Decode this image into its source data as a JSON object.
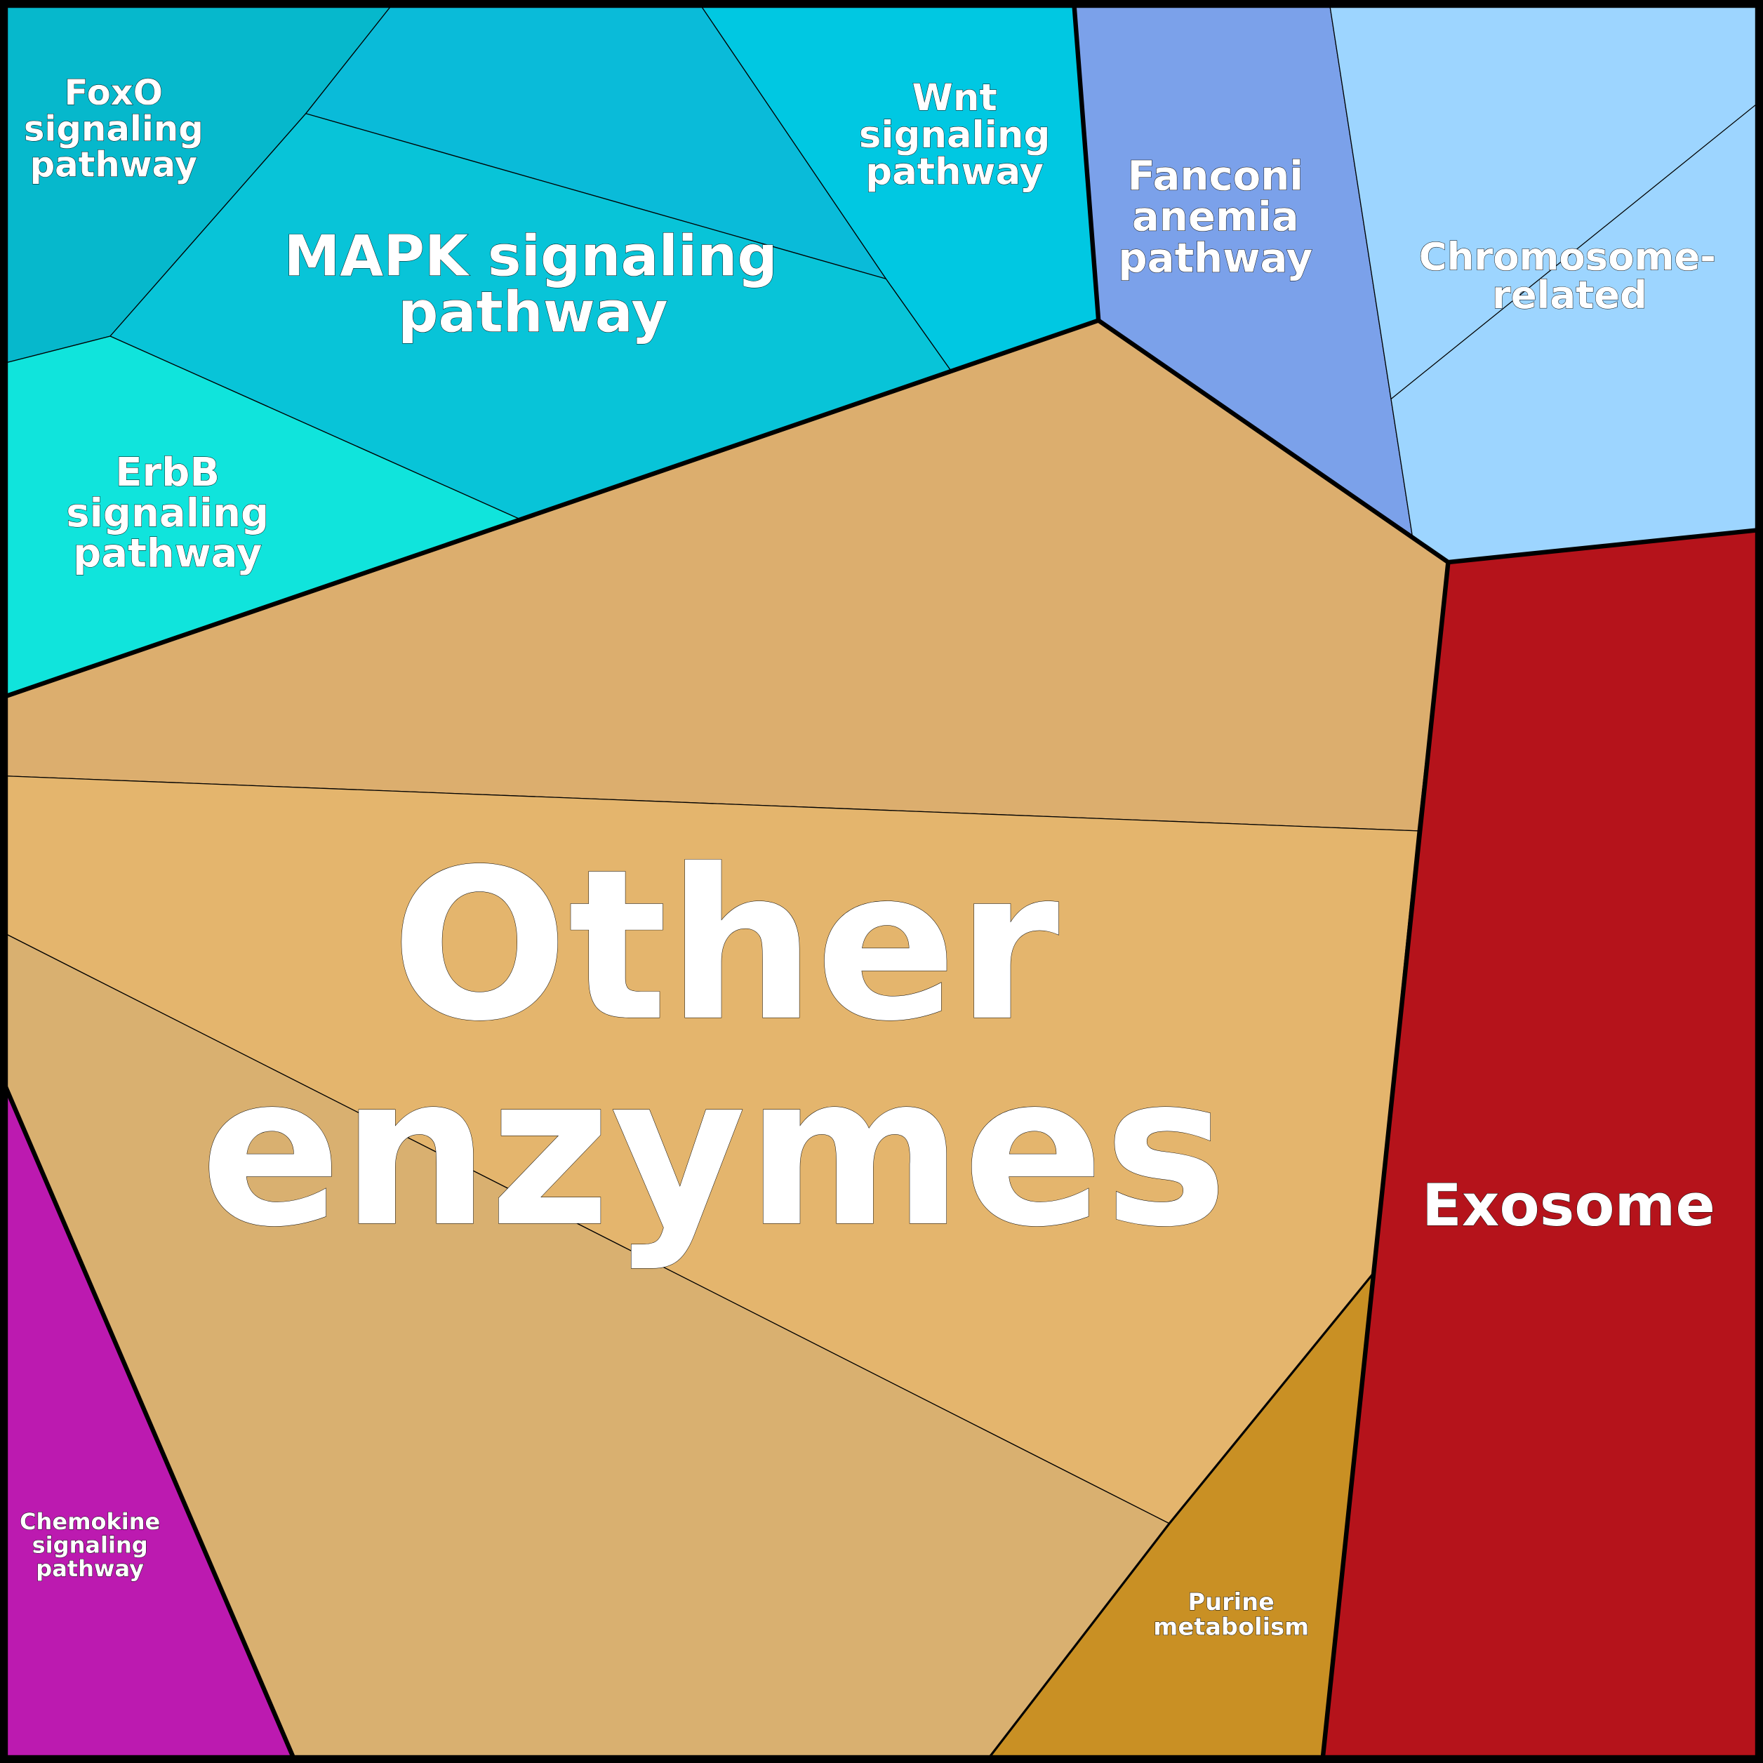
{
  "title": "",
  "cells": {
    "foxo": {
      "label_lines": [
        "FoxO",
        "signaling",
        "pathway"
      ],
      "color": "#06b8cc"
    },
    "mapk": {
      "label_lines": [
        "MAPK signaling",
        "pathway"
      ],
      "color": "#08c4d8",
      "sub_color": "#0abbd9"
    },
    "wnt": {
      "label_lines": [
        "Wnt",
        "signaling",
        "pathway"
      ],
      "color": "#00c8e2"
    },
    "erbb": {
      "label_lines": [
        "ErbB",
        "signaling",
        "pathway"
      ],
      "color": "#10e4dc"
    },
    "fanconi": {
      "label_lines": [
        "Fanconi",
        "anemia",
        "pathway"
      ],
      "color": "#7ba1ea"
    },
    "chromosome": {
      "label_lines": [
        "Chromosome-",
        "related"
      ],
      "color": "#9dd5ff"
    },
    "other": {
      "label_lines": [
        "Other",
        "enzymes"
      ],
      "colors": [
        "#dcae6e",
        "#e4b56d",
        "#d9b070"
      ]
    },
    "exosome": {
      "label_lines": [
        "Exosome"
      ],
      "color": "#b5131b"
    },
    "purine": {
      "label_lines": [
        "Purine",
        "metabolism"
      ],
      "color": "#c99024"
    },
    "chemokine": {
      "label_lines": [
        "Chemokine",
        "signaling",
        "pathway"
      ],
      "color": "#bc1ab0"
    }
  }
}
